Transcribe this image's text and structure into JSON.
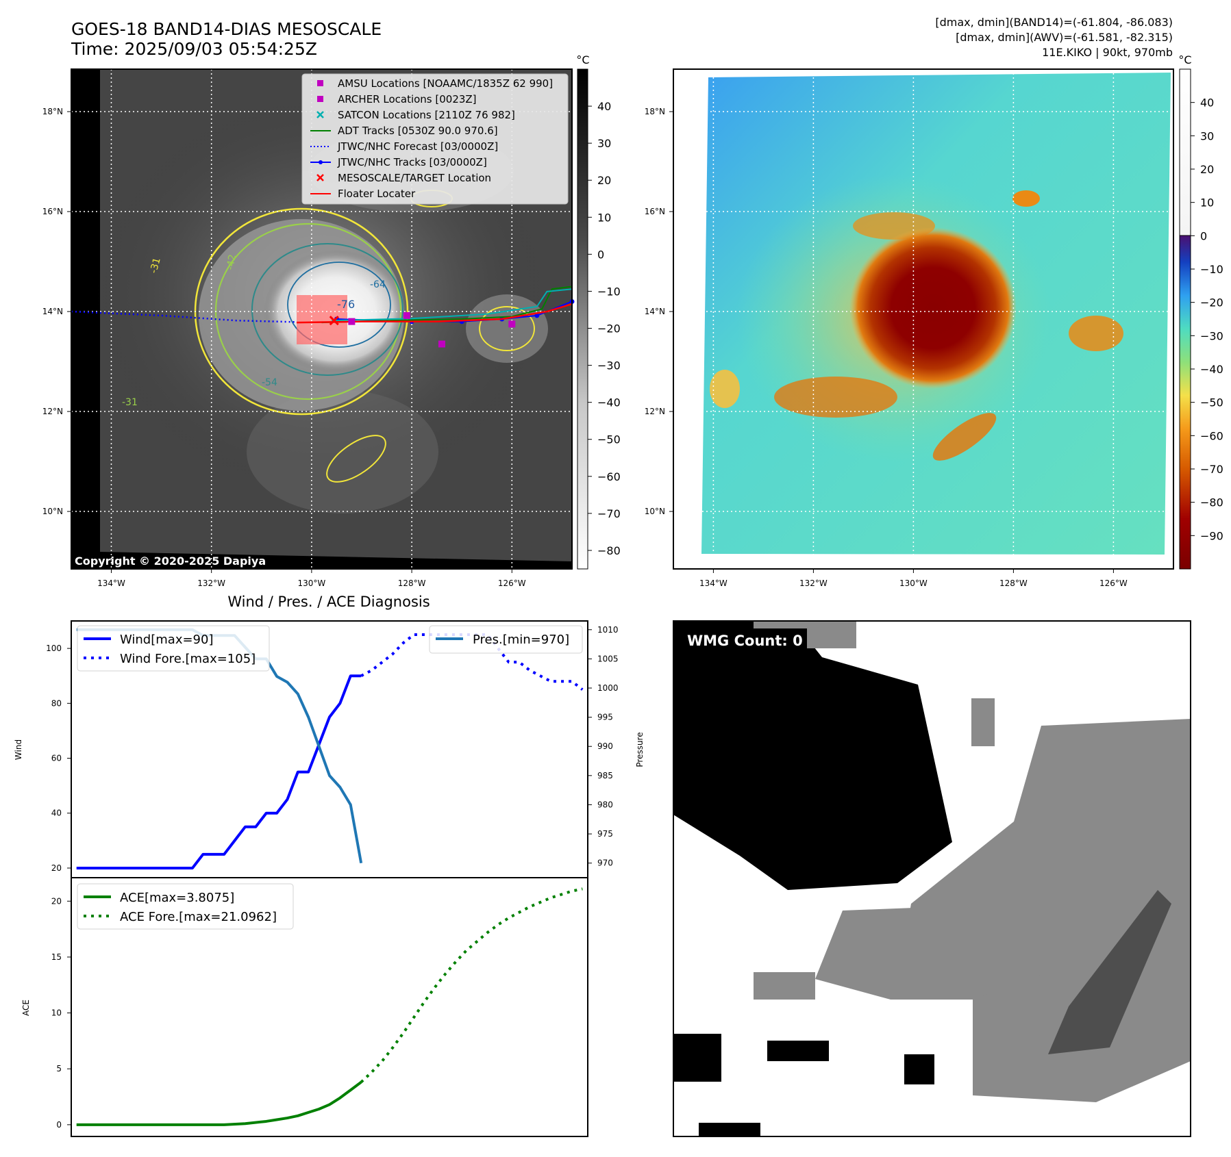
{
  "header": {
    "title": "GOES-18 BAND14-DIAS MESOSCALE",
    "time": "Time: 2025/09/03 05:54:25Z",
    "stats_band14": "[dmax, dmin](BAND14)=(-61.804, -86.083)",
    "stats_awv": "[dmax, dmin](AWV)=(-61.581, -82.315)",
    "storm": "11E.KIKO | 90kt, 970mb",
    "copyright": "Copyright © 2020-2025 Dapiya",
    "diagnosis_title": "Wind / Pres. / ACE Diagnosis",
    "wmg_count": "WMG Count: 0"
  },
  "map": {
    "lat_ticks": [
      "18°N",
      "16°N",
      "14°N",
      "12°N",
      "10°N"
    ],
    "lat_values": [
      18,
      16,
      14,
      12,
      10
    ],
    "lon_ticks": [
      "134°W",
      "132°W",
      "130°W",
      "128°W",
      "126°W"
    ],
    "lon_values": [
      -134,
      -132,
      -130,
      -128,
      -126
    ],
    "lat_range": [
      8.85,
      18.85
    ],
    "lon_range": [
      -134.8,
      -124.8
    ],
    "contour_labels": [
      "-76",
      "-64",
      "-54",
      "-31",
      "-31",
      "-42"
    ],
    "legend": [
      {
        "label": "AMSU Locations [NOAAMC/1835Z 62 990]",
        "marker": "square",
        "color": "#c000c0"
      },
      {
        "label": "ARCHER Locations [0023Z]",
        "marker": "square",
        "color": "#c000c0"
      },
      {
        "label": "SATCON Locations [2110Z 76 982]",
        "marker": "x",
        "color": "#00b0b0"
      },
      {
        "label": "ADT Tracks [0530Z 90.0 970.6]",
        "marker": "line",
        "color": "#008000"
      },
      {
        "label": "JTWC/NHC Forecast [03/0000Z]",
        "marker": "dotted",
        "color": "#0000ff"
      },
      {
        "label": "JTWC/NHC Tracks [03/0000Z]",
        "marker": "line-dot",
        "color": "#0000ff"
      },
      {
        "label": "MESOSCALE/TARGET Location",
        "marker": "x",
        "color": "#ff0000"
      },
      {
        "label": "Floater Locater",
        "marker": "line",
        "color": "#ff0000"
      }
    ]
  },
  "colorbar_ir": {
    "unit": "°C",
    "ticks": [
      "40",
      "30",
      "20",
      "10",
      "0",
      "−10",
      "−20",
      "−30",
      "−40",
      "−50",
      "−60",
      "−70",
      "−80"
    ],
    "values": [
      40,
      30,
      20,
      10,
      0,
      -10,
      -20,
      -30,
      -40,
      -50,
      -60,
      -70,
      -80
    ],
    "range": [
      -85,
      50
    ]
  },
  "colorbar_color": {
    "unit": "°C",
    "ticks": [
      "40",
      "30",
      "20",
      "10",
      "0",
      "−10",
      "−20",
      "−30",
      "−40",
      "−50",
      "−60",
      "−70",
      "−80",
      "−90"
    ],
    "values": [
      40,
      30,
      20,
      10,
      0,
      -10,
      -20,
      -30,
      -40,
      -50,
      -60,
      -70,
      -80,
      -90
    ],
    "range": [
      -100,
      50
    ]
  },
  "chart_data": [
    {
      "type": "line",
      "title": "Wind / Pres. / ACE Diagnosis",
      "xlabel": "",
      "ylabel": "Wind",
      "ylabel_right": "Pressure",
      "ylim": [
        16.5,
        110
      ],
      "ylim_right": [
        967.5,
        1011.5
      ],
      "xlim": [
        -0.5,
        48.5
      ],
      "yticks": [
        "20",
        "40",
        "60",
        "80",
        "100"
      ],
      "yticks_values": [
        20,
        40,
        60,
        80,
        100
      ],
      "yticks_right": [
        "970",
        "975",
        "980",
        "985",
        "990",
        "995",
        "1000",
        "1005",
        "1010"
      ],
      "yticks_right_values": [
        970,
        975,
        980,
        985,
        990,
        995,
        1000,
        1005,
        1010
      ],
      "legend_left": [
        "Wind[max=90]",
        "Wind Fore.[max=105]"
      ],
      "legend_right": [
        "Pres.[min=970]"
      ],
      "series": [
        {
          "name": "Wind[max=90]",
          "color": "#0000ff",
          "style": "solid",
          "x": [
            0,
            1,
            2,
            3,
            4,
            5,
            6,
            7,
            8,
            9,
            10,
            11,
            12,
            13,
            14,
            15,
            16,
            17,
            18,
            19,
            20,
            21,
            22,
            23,
            24,
            25,
            26,
            27
          ],
          "values": [
            20,
            20,
            20,
            20,
            20,
            20,
            20,
            20,
            20,
            20,
            20,
            20,
            25,
            25,
            25,
            30,
            35,
            35,
            40,
            40,
            45,
            55,
            55,
            65,
            75,
            80,
            90,
            90
          ]
        },
        {
          "name": "Wind Fore.[max=105]",
          "color": "#0000ff",
          "style": "dotted",
          "x": [
            27,
            28,
            29,
            30,
            31,
            32,
            33,
            34,
            35,
            36,
            37,
            38,
            39,
            40,
            41,
            42,
            43,
            44,
            45,
            46,
            47,
            48
          ],
          "values": [
            90,
            92,
            95,
            98,
            102,
            105,
            105,
            105,
            105,
            105,
            105,
            105,
            105,
            100,
            95,
            95,
            92,
            90,
            88,
            88,
            88,
            85
          ]
        },
        {
          "name": "Pres.[min=970]",
          "color": "#1f77b4",
          "style": "solid",
          "axis": "right",
          "x": [
            0,
            1,
            2,
            3,
            4,
            5,
            6,
            7,
            8,
            9,
            10,
            11,
            12,
            13,
            14,
            15,
            16,
            17,
            18,
            19,
            20,
            21,
            22,
            23,
            24,
            25,
            26,
            27
          ],
          "values": [
            1010,
            1010,
            1010,
            1010,
            1010,
            1010,
            1010,
            1010,
            1010,
            1010,
            1010,
            1010,
            1009,
            1009,
            1009,
            1009,
            1007,
            1005,
            1005,
            1002,
            1001,
            999,
            995,
            990,
            985,
            983,
            980,
            970
          ]
        }
      ]
    },
    {
      "type": "line",
      "title": "",
      "xlabel": "",
      "ylabel": "ACE",
      "ylim": [
        -1.05,
        22.1
      ],
      "xlim": [
        -0.5,
        48.5
      ],
      "yticks": [
        "0",
        "5",
        "10",
        "15",
        "20"
      ],
      "yticks_values": [
        0,
        5,
        10,
        15,
        20
      ],
      "legend": [
        "ACE[max=3.8075]",
        "ACE Fore.[max=21.0962]"
      ],
      "series": [
        {
          "name": "ACE[max=3.8075]",
          "color": "#008000",
          "style": "solid",
          "x": [
            0,
            2,
            4,
            6,
            8,
            10,
            12,
            14,
            16,
            18,
            19,
            20,
            21,
            22,
            23,
            24,
            25,
            26,
            27
          ],
          "values": [
            0,
            0,
            0,
            0,
            0,
            0,
            0,
            0,
            0.1,
            0.3,
            0.45,
            0.6,
            0.8,
            1.1,
            1.4,
            1.8,
            2.4,
            3.1,
            3.8075
          ]
        },
        {
          "name": "ACE Fore.[max=21.0962]",
          "color": "#008000",
          "style": "dotted",
          "x": [
            27,
            28,
            29,
            30,
            31,
            32,
            33,
            34,
            35,
            36,
            37,
            38,
            39,
            40,
            41,
            42,
            43,
            44,
            45,
            46,
            47,
            48
          ],
          "values": [
            3.8075,
            4.7,
            5.7,
            6.9,
            8.2,
            9.6,
            11.0,
            12.3,
            13.5,
            14.6,
            15.6,
            16.4,
            17.2,
            17.9,
            18.5,
            19.0,
            19.5,
            19.9,
            20.3,
            20.6,
            20.9,
            21.0962
          ]
        }
      ]
    }
  ]
}
